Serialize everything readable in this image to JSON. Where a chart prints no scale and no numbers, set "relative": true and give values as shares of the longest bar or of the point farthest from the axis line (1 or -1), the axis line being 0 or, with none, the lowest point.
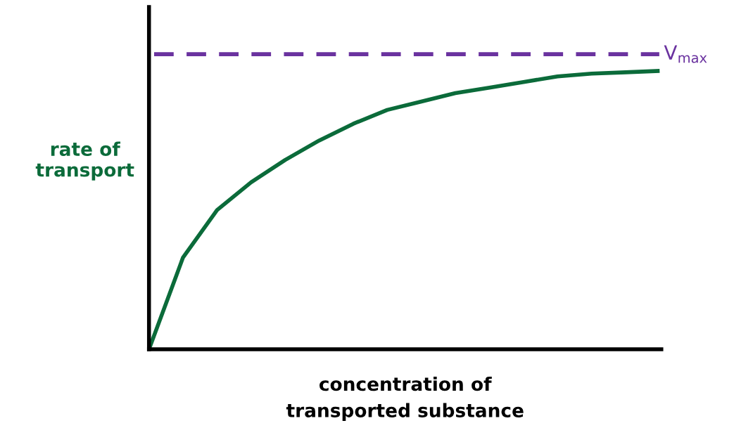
{
  "chart_data": {
    "type": "line",
    "relative": true,
    "xlabel": "concentration of\ntransported substance",
    "ylabel": "rate of\ntransport",
    "categories": [
      null,
      null,
      null,
      null,
      null,
      null,
      null,
      null,
      null,
      null,
      null,
      null,
      null,
      null,
      null,
      null
    ],
    "series": [
      {
        "color": "#0b6b3a",
        "values": [
          0,
          0.33,
          0.5,
          0.6,
          0.68,
          0.75,
          0.81,
          0.86,
          0.89,
          0.92,
          0.94,
          0.96,
          0.98,
          0.99,
          0.995,
          1
        ]
      }
    ],
    "ref_lines": [
      {
        "axis": "y",
        "value": 1.06,
        "label": "V$_{max}$",
        "color": "#6a329f",
        "line_style": "dashed"
      }
    ],
    "tick_labels": false,
    "legend": false,
    "line_style": "solid",
    "marker": "none"
  }
}
